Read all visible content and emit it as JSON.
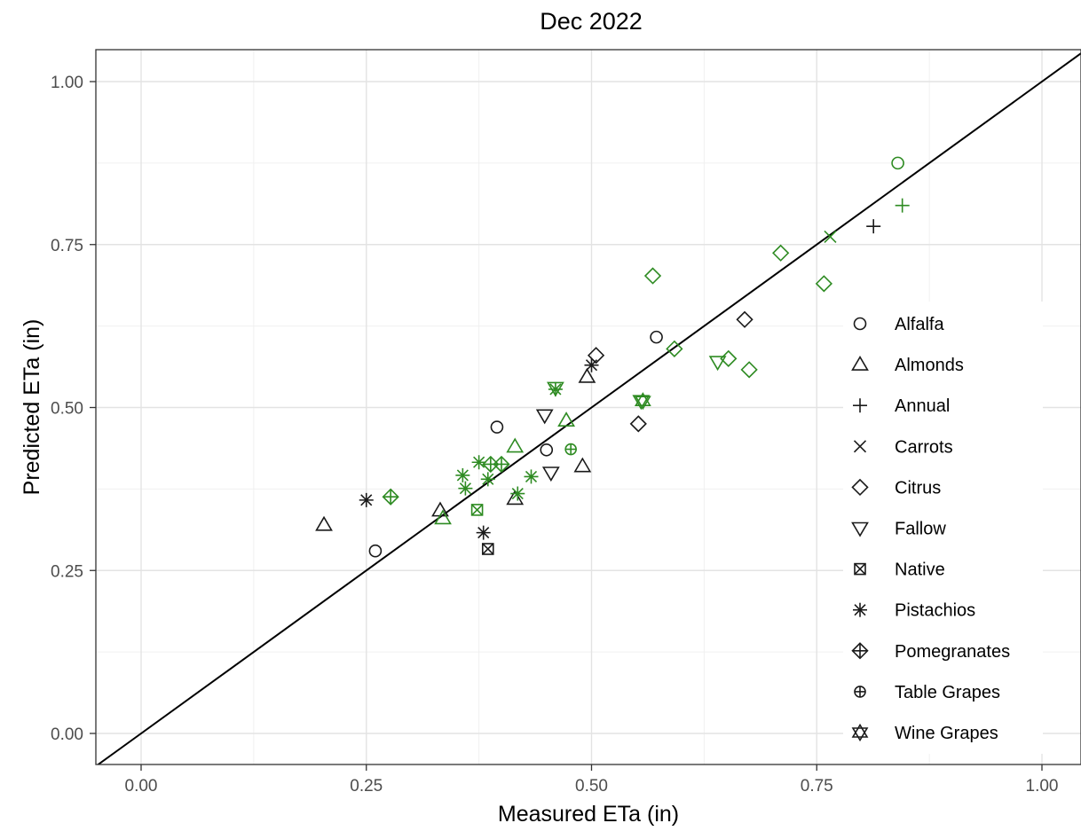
{
  "chart_data": {
    "type": "scatter",
    "title": "Dec 2022",
    "xlabel": "Measured ETa (in)",
    "ylabel": "Predicted ETa (in)",
    "xlim": [
      -0.045,
      1.045
    ],
    "ylim": [
      -0.045,
      1.045
    ],
    "xticks": [
      "0.00",
      "0.25",
      "0.50",
      "0.75",
      "1.00"
    ],
    "yticks": [
      "0.00",
      "0.25",
      "0.50",
      "0.75",
      "1.00"
    ],
    "grid": true,
    "reference_line": "1:1",
    "legend_position": "right",
    "colors": {
      "black": "#1a1a1a",
      "green": "#2e8b22"
    },
    "series": [
      {
        "name": "Alfalfa",
        "shape": "circle",
        "points": [
          {
            "x": 0.26,
            "y": 0.28,
            "c": "black"
          },
          {
            "x": 0.395,
            "y": 0.47,
            "c": "black"
          },
          {
            "x": 0.45,
            "y": 0.435,
            "c": "black"
          },
          {
            "x": 0.572,
            "y": 0.608,
            "c": "black"
          },
          {
            "x": 0.84,
            "y": 0.875,
            "c": "green"
          }
        ]
      },
      {
        "name": "Almonds",
        "shape": "triangle-up",
        "points": [
          {
            "x": 0.203,
            "y": 0.32,
            "c": "black"
          },
          {
            "x": 0.332,
            "y": 0.342,
            "c": "black"
          },
          {
            "x": 0.415,
            "y": 0.36,
            "c": "black"
          },
          {
            "x": 0.49,
            "y": 0.41,
            "c": "black"
          },
          {
            "x": 0.495,
            "y": 0.547,
            "c": "black"
          },
          {
            "x": 0.335,
            "y": 0.33,
            "c": "green"
          },
          {
            "x": 0.415,
            "y": 0.44,
            "c": "green"
          },
          {
            "x": 0.472,
            "y": 0.48,
            "c": "green"
          }
        ]
      },
      {
        "name": "Annual",
        "shape": "plus",
        "points": [
          {
            "x": 0.813,
            "y": 0.778,
            "c": "black"
          },
          {
            "x": 0.845,
            "y": 0.81,
            "c": "green"
          }
        ]
      },
      {
        "name": "Carrots",
        "shape": "cross",
        "points": [
          {
            "x": 0.765,
            "y": 0.762,
            "c": "green"
          }
        ]
      },
      {
        "name": "Citrus",
        "shape": "diamond",
        "points": [
          {
            "x": 0.505,
            "y": 0.58,
            "c": "black"
          },
          {
            "x": 0.552,
            "y": 0.475,
            "c": "black"
          },
          {
            "x": 0.67,
            "y": 0.635,
            "c": "black"
          },
          {
            "x": 0.568,
            "y": 0.702,
            "c": "green"
          },
          {
            "x": 0.592,
            "y": 0.59,
            "c": "green"
          },
          {
            "x": 0.652,
            "y": 0.575,
            "c": "green"
          },
          {
            "x": 0.675,
            "y": 0.558,
            "c": "green"
          },
          {
            "x": 0.71,
            "y": 0.737,
            "c": "green"
          },
          {
            "x": 0.758,
            "y": 0.69,
            "c": "green"
          }
        ]
      },
      {
        "name": "Fallow",
        "shape": "triangle-down",
        "points": [
          {
            "x": 0.448,
            "y": 0.488,
            "c": "black"
          },
          {
            "x": 0.455,
            "y": 0.4,
            "c": "black"
          },
          {
            "x": 0.46,
            "y": 0.53,
            "c": "green"
          },
          {
            "x": 0.64,
            "y": 0.57,
            "c": "green"
          },
          {
            "x": 0.555,
            "y": 0.51,
            "c": "green"
          }
        ]
      },
      {
        "name": "Native",
        "shape": "square-x",
        "points": [
          {
            "x": 0.385,
            "y": 0.283,
            "c": "black"
          },
          {
            "x": 0.373,
            "y": 0.343,
            "c": "green"
          }
        ]
      },
      {
        "name": "Pistachios",
        "shape": "asterisk",
        "points": [
          {
            "x": 0.25,
            "y": 0.358,
            "c": "black"
          },
          {
            "x": 0.38,
            "y": 0.308,
            "c": "black"
          },
          {
            "x": 0.5,
            "y": 0.565,
            "c": "black"
          },
          {
            "x": 0.357,
            "y": 0.396,
            "c": "green"
          },
          {
            "x": 0.36,
            "y": 0.376,
            "c": "green"
          },
          {
            "x": 0.385,
            "y": 0.39,
            "c": "green"
          },
          {
            "x": 0.375,
            "y": 0.416,
            "c": "green"
          },
          {
            "x": 0.418,
            "y": 0.368,
            "c": "green"
          },
          {
            "x": 0.433,
            "y": 0.394,
            "c": "green"
          },
          {
            "x": 0.46,
            "y": 0.528,
            "c": "green"
          }
        ]
      },
      {
        "name": "Pomegranates",
        "shape": "diamond-plus",
        "points": [
          {
            "x": 0.277,
            "y": 0.363,
            "c": "green"
          },
          {
            "x": 0.388,
            "y": 0.413,
            "c": "green"
          },
          {
            "x": 0.4,
            "y": 0.413,
            "c": "green"
          }
        ]
      },
      {
        "name": "Table Grapes",
        "shape": "circle-plus",
        "points": [
          {
            "x": 0.477,
            "y": 0.436,
            "c": "green"
          }
        ]
      },
      {
        "name": "Wine Grapes",
        "shape": "hexagram",
        "points": [
          {
            "x": 0.557,
            "y": 0.51,
            "c": "green"
          }
        ]
      }
    ]
  }
}
